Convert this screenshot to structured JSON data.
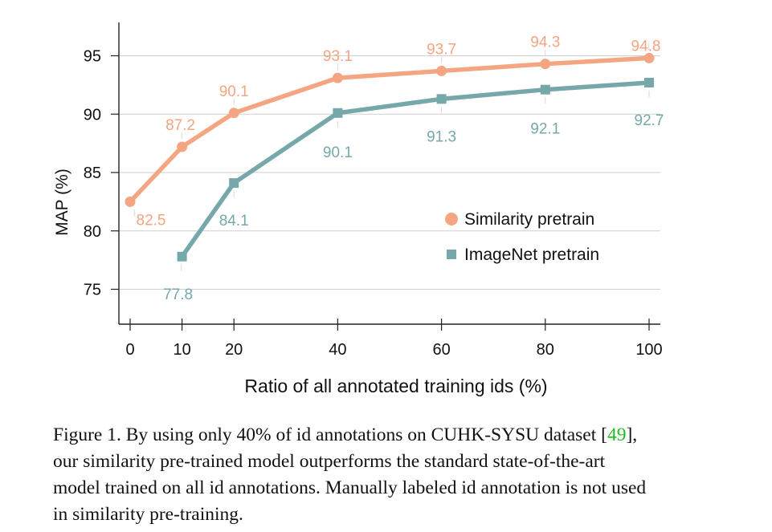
{
  "chart_data": {
    "type": "line",
    "x": [
      0,
      10,
      20,
      40,
      60,
      80,
      100
    ],
    "xlabel": "Ratio of all annotated training ids (%)",
    "ylabel": "MAP (%)",
    "xticks": [
      0,
      10,
      20,
      40,
      60,
      80,
      100
    ],
    "yticks": [
      75,
      80,
      85,
      90,
      95
    ],
    "xlim": [
      -1,
      101
    ],
    "ylim": [
      72,
      98
    ],
    "grid": "horizontal",
    "legend": "center-right",
    "series": [
      {
        "name": "Similarity pretrain",
        "marker": "circle",
        "color": "#f4a582",
        "points": [
          {
            "x": 0,
            "y": 82.5,
            "label": "82.5"
          },
          {
            "x": 10,
            "y": 87.2,
            "label": "87.2"
          },
          {
            "x": 20,
            "y": 90.1,
            "label": "90.1"
          },
          {
            "x": 40,
            "y": 93.1,
            "label": "93.1"
          },
          {
            "x": 60,
            "y": 93.7,
            "label": "93.7"
          },
          {
            "x": 80,
            "y": 94.3,
            "label": "94.3"
          },
          {
            "x": 100,
            "y": 94.8,
            "label": "94.8"
          }
        ]
      },
      {
        "name": "ImageNet pretrain",
        "marker": "square",
        "color": "#76a8ab",
        "points": [
          {
            "x": 10,
            "y": 77.8,
            "label": "77.8"
          },
          {
            "x": 20,
            "y": 84.1,
            "label": "84.1"
          },
          {
            "x": 40,
            "y": 90.1,
            "label": "90.1"
          },
          {
            "x": 60,
            "y": 91.3,
            "label": "91.3"
          },
          {
            "x": 80,
            "y": 92.1,
            "label": "92.1"
          },
          {
            "x": 100,
            "y": 92.7,
            "label": "92.7"
          }
        ]
      }
    ]
  },
  "caption": {
    "prefix": "Figure 1. By using only ",
    "math": "40%",
    "middle": " of id annotations on CUHK-SYSU dataset [",
    "cite": "49",
    "suffix": "], our similarity pre-trained model outperforms the standard state-of-the-art model trained on all id annotations. Manually labeled id annotation is not used in similarity pre-training."
  }
}
